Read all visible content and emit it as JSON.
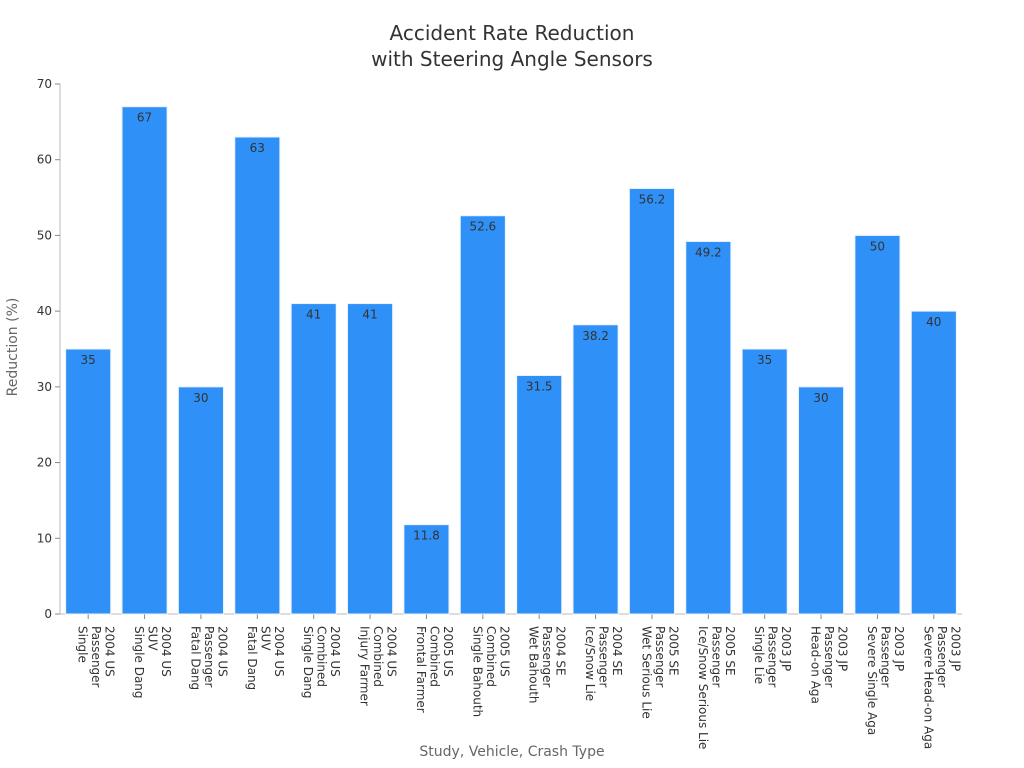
{
  "chart_data": {
    "type": "bar",
    "title_lines": [
      "Accident Rate Reduction",
      "with Steering Angle Sensors"
    ],
    "xlabel": "Study, Vehicle, Crash Type",
    "ylabel": "Reduction (%)",
    "ylim": [
      0,
      70
    ],
    "yticks": [
      0,
      10,
      20,
      30,
      40,
      50,
      60,
      70
    ],
    "grid": false,
    "bar_color": "#2f90f7",
    "categories": [
      [
        "2004 US",
        "Passenger",
        "Single"
      ],
      [
        "2004 US",
        "SUV",
        "Single Dang"
      ],
      [
        "2004 US",
        "Passenger",
        "Fatal Dang"
      ],
      [
        "2004 US",
        "SUV",
        "Fatal Dang"
      ],
      [
        "2004 US",
        "Combined",
        "Single Dang"
      ],
      [
        "2004 US",
        "Combined",
        "Injury Farmer"
      ],
      [
        "2005 US",
        "Combined",
        "Frontal Farmer"
      ],
      [
        "2005 US",
        "Combined",
        "Single Bahouth"
      ],
      [
        "2004 SE",
        "Passenger",
        "Wet Bahouth"
      ],
      [
        "2004 SE",
        "Passenger",
        "Ice/Snow Lie"
      ],
      [
        "2005 SE",
        "Passenger",
        "Wet Serious Lie"
      ],
      [
        "2005 SE",
        "Passenger",
        "Ice/Snow Serious Lie"
      ],
      [
        "2003 JP",
        "Passenger",
        "Single Lie"
      ],
      [
        "2003 JP",
        "Passenger",
        "Head-on Aga"
      ],
      [
        "2003 JP",
        "Passenger",
        "Severe Single Aga"
      ],
      [
        "2003 JP",
        "Passenger",
        "Severe Head-on Aga"
      ]
    ],
    "values": [
      35,
      67,
      30,
      63,
      41,
      41,
      11.8,
      52.6,
      31.5,
      38.2,
      56.2,
      49.2,
      35,
      30,
      50,
      40
    ],
    "data_labels": [
      "35",
      "67",
      "30",
      "63",
      "41",
      "41",
      "11.8",
      "52.6",
      "31.5",
      "38.2",
      "56.2",
      "49.2",
      "35",
      "30",
      "50",
      "40"
    ]
  }
}
